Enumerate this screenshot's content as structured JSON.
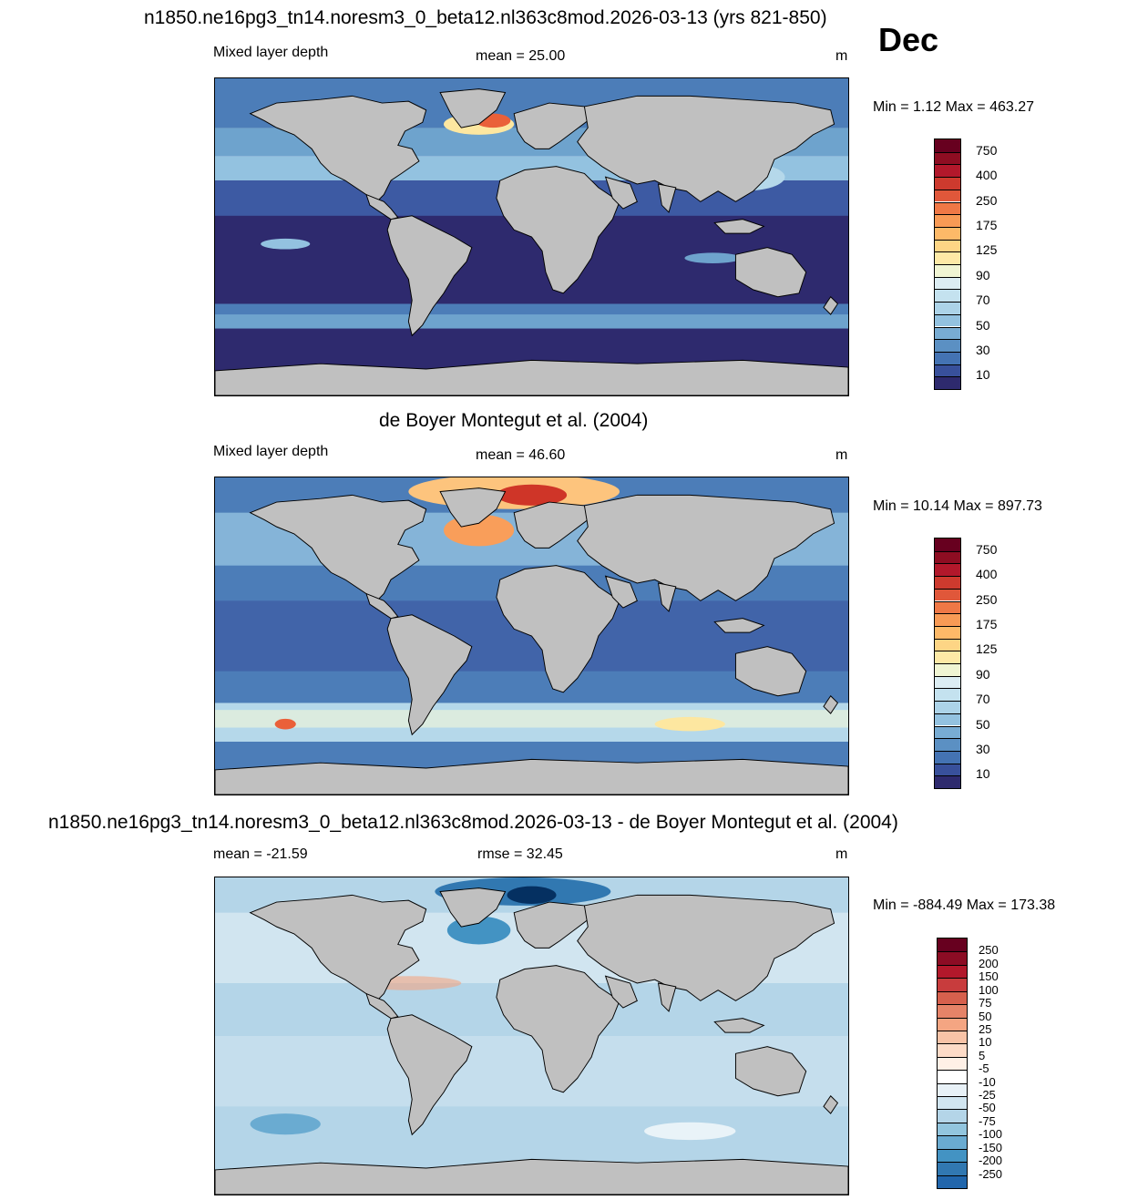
{
  "figure": {
    "main_title": "n1850.ne16pg3_tn14.noresm3_0_beta12.nl363c8mod.2026-03-13 (yrs 821-850)",
    "month": "Dec"
  },
  "panels": [
    {
      "variable": "Mixed layer depth",
      "stat": "mean =  25.00",
      "units": "m",
      "minmax": "Min =   1.12 Max = 463.27",
      "colorbar": [
        "750",
        "400",
        "250",
        "175",
        "125",
        "90",
        "70",
        "50",
        "30",
        "10"
      ]
    },
    {
      "title": "de Boyer Montegut et al. (2004)",
      "variable": "Mixed layer depth",
      "stat": "mean =  46.60",
      "units": "m",
      "minmax": "Min =  10.14 Max = 897.73",
      "colorbar": [
        "750",
        "400",
        "250",
        "175",
        "125",
        "90",
        "70",
        "50",
        "30",
        "10"
      ]
    },
    {
      "title": "n1850.ne16pg3_tn14.noresm3_0_beta12.nl363c8mod.2026-03-13 - de Boyer Montegut et al. (2004)",
      "stat": "mean = -21.59",
      "stat2": "rmse =  32.45",
      "units": "m",
      "minmax": "Min = -884.49 Max = 173.38",
      "colorbar": [
        "250",
        "200",
        "150",
        "100",
        "75",
        "50",
        "25",
        "10",
        "5",
        "-5",
        "-10",
        "-25",
        "-50",
        "-75",
        "-100",
        "-150",
        "-200",
        "-250"
      ]
    }
  ],
  "colors": {
    "land": "#c0c0c0",
    "seq_scale": [
      "#67001f",
      "#a2151f",
      "#cf3528",
      "#ea6039",
      "#f99e5a",
      "#fdc47d",
      "#fde7a0",
      "#f5f8d7",
      "#d8ecf4",
      "#b5d8ea",
      "#93c2e0",
      "#6ea3cd",
      "#4c7db8",
      "#3d5aa3",
      "#2e2a6e"
    ],
    "div_scale": [
      "#67001f",
      "#8c0c24",
      "#b2182b",
      "#c83c3d",
      "#d6604d",
      "#e58368",
      "#f4a582",
      "#f8c3a7",
      "#fddbc7",
      "#fff0e6",
      "#ffffff",
      "#e8f1f7",
      "#d1e5f0",
      "#b4d5e8",
      "#92c5de",
      "#6aabd1",
      "#4393c3",
      "#3178b1",
      "#2166ac",
      "#134a85",
      "#053061"
    ]
  },
  "icons": [
    "world-map-continents-icon"
  ]
}
